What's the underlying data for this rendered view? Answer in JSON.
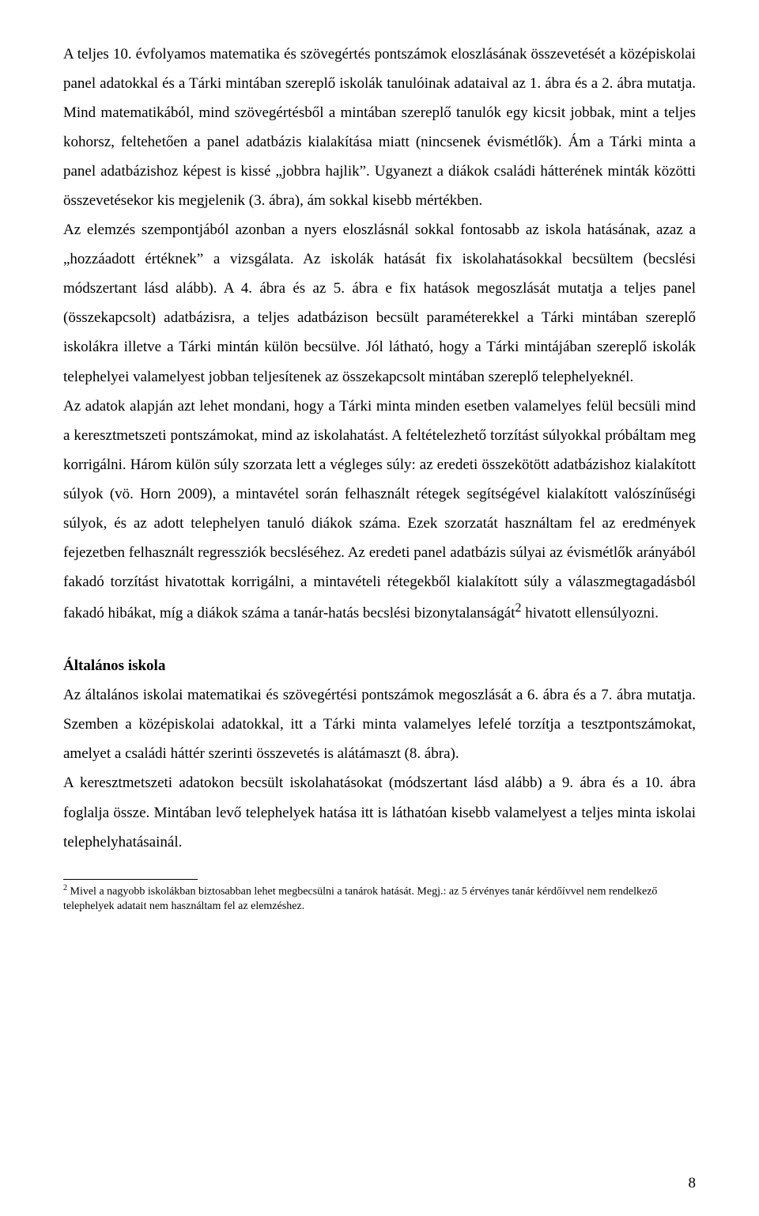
{
  "document": {
    "para1": "A teljes 10. évfolyamos matematika és szövegértés pontszámok eloszlásának összevetését a középiskolai panel adatokkal és a Tárki mintában szereplő iskolák tanulóinak adataival az 1. ábra és a 2. ábra mutatja. Mind matematikából, mind szövegértésből a mintában szereplő tanulók egy kicsit jobbak, mint a teljes kohorsz, feltehetően a panel adatbázis kialakítása miatt (nincsenek évismétlők). Ám a Tárki minta a panel adatbázishoz képest is kissé „jobbra hajlik”. Ugyanezt a diákok családi hátterének minták közötti összevetésekor kis megjelenik (3. ábra), ám sokkal kisebb mértékben.",
    "para2": "Az elemzés szempontjából azonban a nyers eloszlásnál sokkal fontosabb az iskola hatásának, azaz a „hozzáadott értéknek” a vizsgálata. Az iskolák hatását fix iskolahatásokkal becsültem (becslési módszertant lásd alább). A 4. ábra és az 5. ábra e fix hatások megoszlását mutatja a teljes panel (összekapcsolt) adatbázisra, a teljes adatbázison becsült paraméterekkel a Tárki mintában szereplő iskolákra illetve a Tárki mintán külön becsülve. Jól látható, hogy a Tárki mintájában szereplő iskolák telephelyei valamelyest jobban teljesítenek az összekapcsolt mintában szereplő telephelyeknél.",
    "para3_prefix": "Az adatok alapján azt lehet mondani, hogy a Tárki minta minden esetben valamelyes felül becsüli mind a keresztmetszeti pontszámokat, mind az iskolahatást. A feltételezhető torzítást súlyokkal próbáltam meg korrigálni. Három külön súly szorzata lett a végleges súly: az eredeti összekötött adatbázishoz kialakított súlyok (vö. Horn 2009), a mintavétel során felhasznált rétegek segítségével kialakított valószínűségi súlyok, és az adott telephelyen tanuló diákok száma. Ezek szorzatát használtam fel az eredmények fejezetben felhasznált regressziók becsléséhez. Az eredeti panel adatbázis súlyai az évismétlők arányából fakadó torzítást hivatottak korrigálni, a mintavételi rétegekből kialakított súly a válaszmegtagadásból fakadó hibákat, míg a diákok száma a tanár-hatás becslési bizonytalanságát",
    "para3_suffix": " hivatott ellensúlyozni.",
    "footnote_ref": "2",
    "section_heading": "Általános iskola",
    "para4": "Az általános iskolai matematikai és szövegértési pontszámok megoszlását a 6. ábra és a 7. ábra mutatja. Szemben a középiskolai adatokkal, itt a Tárki minta valamelyes lefelé torzítja a tesztpontszámokat, amelyet a családi háttér szerinti összevetés is alátámaszt (8. ábra).",
    "para5": "A keresztmetszeti adatokon becsült iskolahatásokat (módszertant lásd alább) a 9. ábra és a 10. ábra foglalja össze.  Mintában levő telephelyek hatása itt is láthatóan kisebb valamelyest a teljes minta iskolai telephelyhatásainál.",
    "footnote_num": "2",
    "footnote_text": " Mivel a nagyobb iskolákban biztosabban lehet megbecsülni a tanárok hatását. Megj.: az 5 érvényes tanár kérdőívvel nem rendelkező telephelyek adatait nem használtam fel az elemzéshez.",
    "page_number": "8"
  }
}
